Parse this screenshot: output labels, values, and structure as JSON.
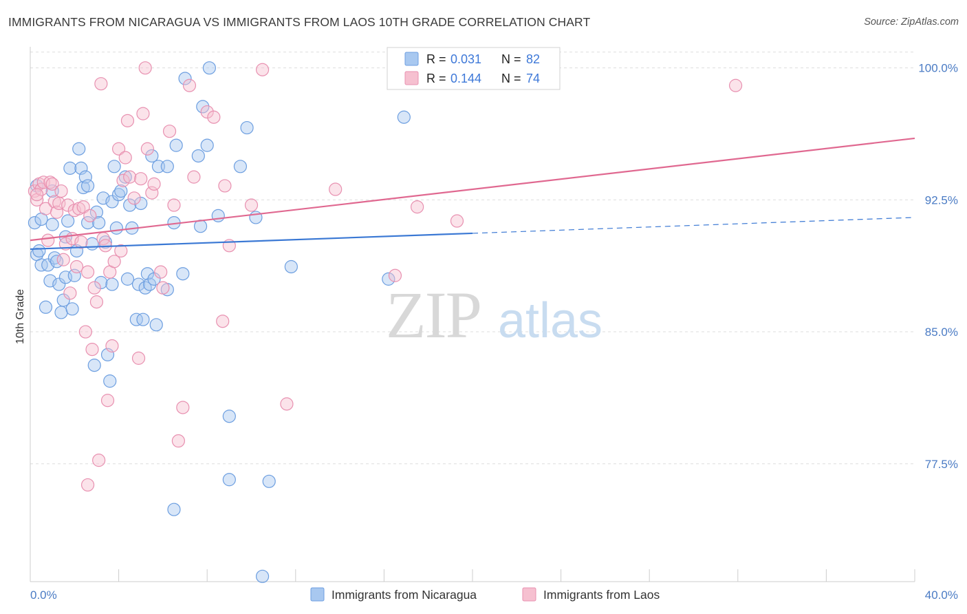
{
  "title": "IMMIGRANTS FROM NICARAGUA VS IMMIGRANTS FROM LAOS 10TH GRADE CORRELATION CHART",
  "source": "Source: ZipAtlas.com",
  "watermark": {
    "zip": "ZIP",
    "atlas": "atlas"
  },
  "colors": {
    "nicaragua_fill": "#a8c8f0",
    "nicaragua_stroke": "#6c9ee0",
    "nicaragua_line": "#3a78d4",
    "laos_fill": "#f6c0d0",
    "laos_stroke": "#e890b0",
    "laos_line": "#e06890",
    "tick_text": "#4a7bc4",
    "grid": "#dddddd"
  },
  "legend_top": {
    "rows": [
      {
        "r_label": "R = ",
        "r_value": "0.031",
        "n_label": "N = ",
        "n_value": "82"
      },
      {
        "r_label": "R = ",
        "r_value": "0.144",
        "n_label": "N = ",
        "n_value": "74"
      }
    ]
  },
  "legend_bottom": {
    "items": [
      "Immigrants from Nicaragua",
      "Immigrants from Laos"
    ]
  },
  "chart_data": {
    "type": "scatter",
    "title": "IMMIGRANTS FROM NICARAGUA VS IMMIGRANTS FROM LAOS 10TH GRADE CORRELATION CHART",
    "xlabel": "",
    "ylabel": "10th Grade",
    "xlim": [
      0,
      40
    ],
    "ylim": [
      70.8,
      101.2
    ],
    "x_tick_labels": [
      "0.0%",
      "40.0%"
    ],
    "y_ticks": [
      77.5,
      85.0,
      92.5,
      100.0
    ],
    "y_tick_labels": [
      "77.5%",
      "85.0%",
      "92.5%",
      "100.0%"
    ],
    "grid": true,
    "legend": "top-center",
    "series": [
      {
        "name": "Immigrants from Nicaragua",
        "r": 0.031,
        "n": 82,
        "trend": {
          "x0": 0,
          "y0": 89.7,
          "x1": 20,
          "y1": 90.6,
          "dashed_to_x": 40,
          "dashed_to_y": 91.5
        },
        "points": [
          [
            0.2,
            91.2
          ],
          [
            0.3,
            89.4
          ],
          [
            0.4,
            89.6
          ],
          [
            0.5,
            88.8
          ],
          [
            0.5,
            91.4
          ],
          [
            0.7,
            86.4
          ],
          [
            0.8,
            88.8
          ],
          [
            0.9,
            87.9
          ],
          [
            1.0,
            91.1
          ],
          [
            1.1,
            89.2
          ],
          [
            1.2,
            89.0
          ],
          [
            1.3,
            87.7
          ],
          [
            1.4,
            86.1
          ],
          [
            1.5,
            86.8
          ],
          [
            1.6,
            90.4
          ],
          [
            1.6,
            88.1
          ],
          [
            1.7,
            91.3
          ],
          [
            1.8,
            94.3
          ],
          [
            1.9,
            86.3
          ],
          [
            2.0,
            88.2
          ],
          [
            2.1,
            89.6
          ],
          [
            2.2,
            95.4
          ],
          [
            2.3,
            94.3
          ],
          [
            2.4,
            93.2
          ],
          [
            2.5,
            93.8
          ],
          [
            2.6,
            91.2
          ],
          [
            2.6,
            93.3
          ],
          [
            2.8,
            90.0
          ],
          [
            2.9,
            83.1
          ],
          [
            3.0,
            91.8
          ],
          [
            3.1,
            91.2
          ],
          [
            3.2,
            87.8
          ],
          [
            3.3,
            92.6
          ],
          [
            3.4,
            90.1
          ],
          [
            3.5,
            83.7
          ],
          [
            3.6,
            82.2
          ],
          [
            3.7,
            92.4
          ],
          [
            3.8,
            94.4
          ],
          [
            3.9,
            90.9
          ],
          [
            4.0,
            92.8
          ],
          [
            4.1,
            93.0
          ],
          [
            4.3,
            93.8
          ],
          [
            4.4,
            88.0
          ],
          [
            4.5,
            92.2
          ],
          [
            4.6,
            90.9
          ],
          [
            4.8,
            85.7
          ],
          [
            4.9,
            87.7
          ],
          [
            5.0,
            92.3
          ],
          [
            5.1,
            85.7
          ],
          [
            5.2,
            87.5
          ],
          [
            5.3,
            88.3
          ],
          [
            5.4,
            87.7
          ],
          [
            5.5,
            95.0
          ],
          [
            5.6,
            88.0
          ],
          [
            5.7,
            85.4
          ],
          [
            5.8,
            94.4
          ],
          [
            6.2,
            87.4
          ],
          [
            6.2,
            94.4
          ],
          [
            6.5,
            91.2
          ],
          [
            6.6,
            95.6
          ],
          [
            6.9,
            88.3
          ],
          [
            7.0,
            99.4
          ],
          [
            7.6,
            95.0
          ],
          [
            7.7,
            91.0
          ],
          [
            7.8,
            97.8
          ],
          [
            8.0,
            95.6
          ],
          [
            8.1,
            100.0
          ],
          [
            8.5,
            91.6
          ],
          [
            9.0,
            76.6
          ],
          [
            9.0,
            80.2
          ],
          [
            9.5,
            94.4
          ],
          [
            9.8,
            96.6
          ],
          [
            10.2,
            91.5
          ],
          [
            10.5,
            71.1
          ],
          [
            10.8,
            76.5
          ],
          [
            11.8,
            88.7
          ],
          [
            16.2,
            88.0
          ],
          [
            16.9,
            97.2
          ],
          [
            6.5,
            74.9
          ],
          [
            3.7,
            87.7
          ],
          [
            1.0,
            93.0
          ],
          [
            0.3,
            93.3
          ]
        ]
      },
      {
        "name": "Immigrants from Laos",
        "r": 0.144,
        "n": 74,
        "trend": {
          "x0": 0,
          "y0": 90.2,
          "x1": 40,
          "y1": 96.0
        },
        "points": [
          [
            0.2,
            93.0
          ],
          [
            0.3,
            92.5
          ],
          [
            0.4,
            93.4
          ],
          [
            0.5,
            93.1
          ],
          [
            0.6,
            93.5
          ],
          [
            0.7,
            92.0
          ],
          [
            0.8,
            90.2
          ],
          [
            0.9,
            93.5
          ],
          [
            1.0,
            93.4
          ],
          [
            1.1,
            92.4
          ],
          [
            1.2,
            91.8
          ],
          [
            1.3,
            92.3
          ],
          [
            1.4,
            93.0
          ],
          [
            1.5,
            89.1
          ],
          [
            1.6,
            90.0
          ],
          [
            1.7,
            92.2
          ],
          [
            1.8,
            87.2
          ],
          [
            1.9,
            90.3
          ],
          [
            2.0,
            91.9
          ],
          [
            2.1,
            88.7
          ],
          [
            2.2,
            92.0
          ],
          [
            2.3,
            90.1
          ],
          [
            2.4,
            92.1
          ],
          [
            2.5,
            85.0
          ],
          [
            2.6,
            88.4
          ],
          [
            2.7,
            91.6
          ],
          [
            2.8,
            84.0
          ],
          [
            2.9,
            87.5
          ],
          [
            3.0,
            86.7
          ],
          [
            3.1,
            77.7
          ],
          [
            3.2,
            99.1
          ],
          [
            3.3,
            90.3
          ],
          [
            3.4,
            89.9
          ],
          [
            3.5,
            81.1
          ],
          [
            3.6,
            88.4
          ],
          [
            3.7,
            84.2
          ],
          [
            3.8,
            89.0
          ],
          [
            4.0,
            95.4
          ],
          [
            4.1,
            89.6
          ],
          [
            4.2,
            93.6
          ],
          [
            4.3,
            94.9
          ],
          [
            4.4,
            97.0
          ],
          [
            4.5,
            93.8
          ],
          [
            4.7,
            92.6
          ],
          [
            4.9,
            83.5
          ],
          [
            5.0,
            93.7
          ],
          [
            5.1,
            97.4
          ],
          [
            5.3,
            95.4
          ],
          [
            5.5,
            92.9
          ],
          [
            5.6,
            93.4
          ],
          [
            5.9,
            88.4
          ],
          [
            6.0,
            87.5
          ],
          [
            6.3,
            96.4
          ],
          [
            6.5,
            92.2
          ],
          [
            6.7,
            78.8
          ],
          [
            6.9,
            80.7
          ],
          [
            7.2,
            99.0
          ],
          [
            7.4,
            93.8
          ],
          [
            8.0,
            97.5
          ],
          [
            8.3,
            97.2
          ],
          [
            8.7,
            85.6
          ],
          [
            8.8,
            93.3
          ],
          [
            9.0,
            89.9
          ],
          [
            10.0,
            92.2
          ],
          [
            10.5,
            99.9
          ],
          [
            11.6,
            80.9
          ],
          [
            13.8,
            93.1
          ],
          [
            16.5,
            88.2
          ],
          [
            17.5,
            92.1
          ],
          [
            19.3,
            91.3
          ],
          [
            31.9,
            99.0
          ],
          [
            2.6,
            76.3
          ],
          [
            5.2,
            100.0
          ],
          [
            0.3,
            92.8
          ]
        ]
      }
    ]
  }
}
